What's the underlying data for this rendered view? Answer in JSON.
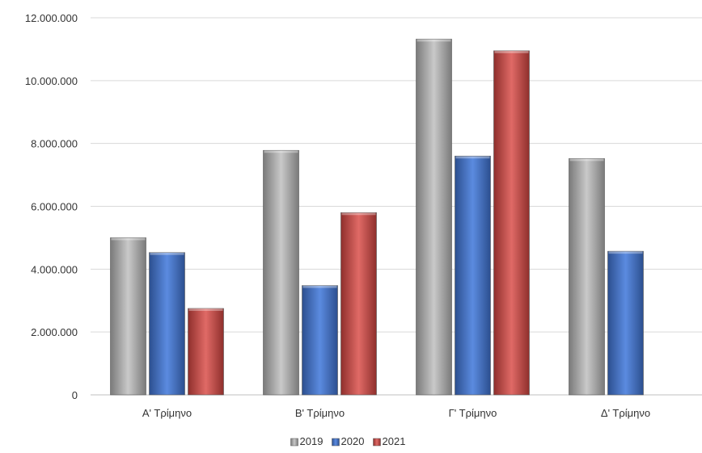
{
  "chart_data": {
    "type": "bar",
    "categories": [
      "Α' Τρίμηνο",
      "Β' Τρίμηνο",
      "Γ' Τρίμηνο",
      "Δ' Τρίμηνο"
    ],
    "series": [
      {
        "name": "2019",
        "values": [
          5000000,
          7780000,
          11320000,
          7520000
        ],
        "color": "#a6a6a6"
      },
      {
        "name": "2020",
        "values": [
          4530000,
          3480000,
          7600000,
          4570000
        ],
        "color": "#4472c4"
      },
      {
        "name": "2021",
        "values": [
          2750000,
          5800000,
          10950000,
          null
        ],
        "color": "#c0504d"
      }
    ],
    "yticks": [
      "0",
      "2.000.000",
      "4.000.000",
      "6.000.000",
      "8.000.000",
      "10.000.000",
      "12.000.000"
    ],
    "ylim": [
      0,
      12000000
    ],
    "grid": true,
    "legend": "bottom",
    "title": "",
    "xlabel": "",
    "ylabel": ""
  }
}
